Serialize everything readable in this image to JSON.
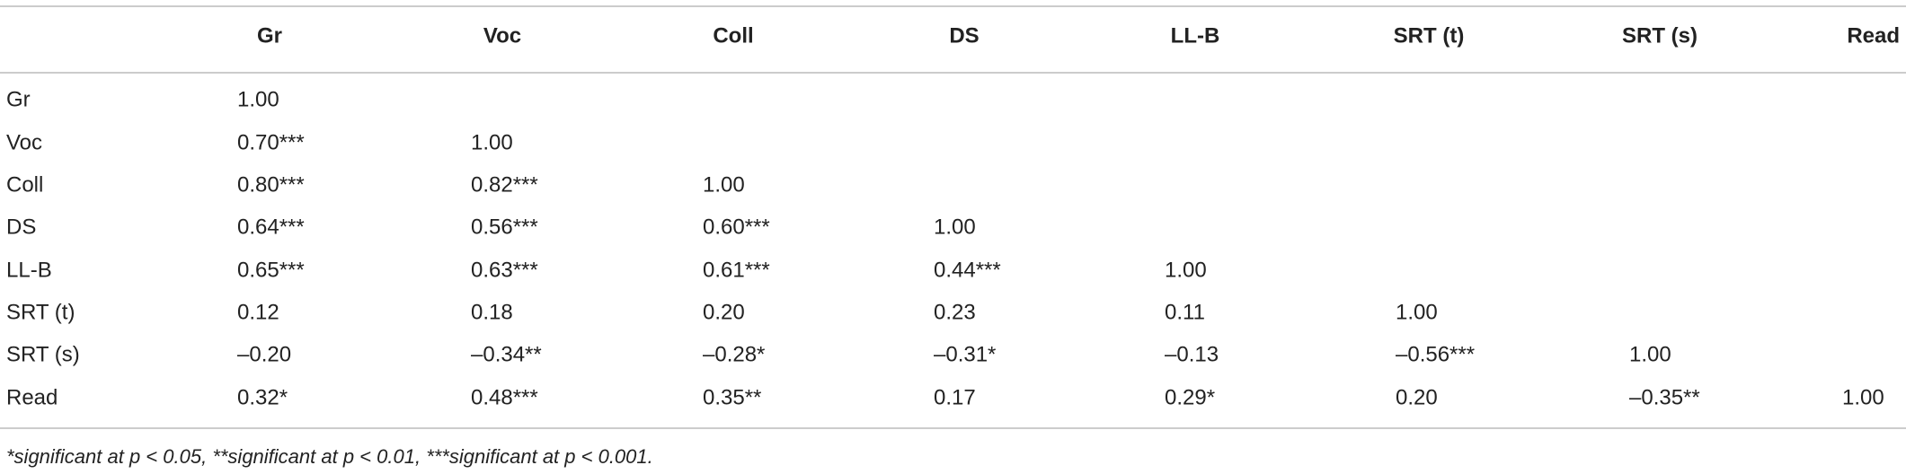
{
  "table": {
    "columns": [
      "Gr",
      "Voc",
      "Coll",
      "DS",
      "LL-B",
      "SRT (t)",
      "SRT (s)",
      "Read"
    ],
    "rows": [
      {
        "label": "Gr",
        "cells": [
          "1.00"
        ]
      },
      {
        "label": "Voc",
        "cells": [
          "0.70***",
          "1.00"
        ]
      },
      {
        "label": "Coll",
        "cells": [
          "0.80***",
          "0.82***",
          "1.00"
        ]
      },
      {
        "label": "DS",
        "cells": [
          "0.64***",
          "0.56***",
          "0.60***",
          "1.00"
        ]
      },
      {
        "label": "LL-B",
        "cells": [
          "0.65***",
          "0.63***",
          "0.61***",
          "0.44***",
          "1.00"
        ]
      },
      {
        "label": "SRT (t)",
        "cells": [
          "0.12",
          "0.18",
          "0.20",
          "0.23",
          "0.11",
          "1.00"
        ]
      },
      {
        "label": "SRT (s)",
        "cells": [
          "–0.20",
          "–0.34**",
          "–0.28*",
          "–0.31*",
          "–0.13",
          "–0.56***",
          "1.00"
        ]
      },
      {
        "label": "Read",
        "cells": [
          "0.32*",
          "0.48***",
          "0.35**",
          "0.17",
          "0.29*",
          "0.20",
          "–0.35**",
          "1.00"
        ]
      }
    ],
    "footnote": "*significant at p < 0.05, **significant at p < 0.01, ***significant at p < 0.001."
  }
}
